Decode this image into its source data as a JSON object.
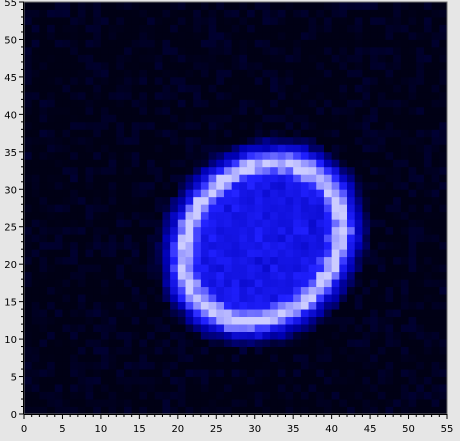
{
  "chart_data": {
    "type": "heatmap",
    "title": "",
    "xlabel": "",
    "ylabel": "",
    "xlim": [
      0,
      55
    ],
    "ylim": [
      0,
      55
    ],
    "xticks": [
      "0",
      "5",
      "10",
      "15",
      "20",
      "25",
      "30",
      "35",
      "40",
      "45",
      "50",
      "55"
    ],
    "yticks": [
      "0",
      "5",
      "10",
      "15",
      "20",
      "25",
      "30",
      "35",
      "40",
      "45",
      "50",
      "55"
    ],
    "grid": false,
    "colormap": [
      "#000015",
      "#0000b4",
      "#2020ff",
      "#ccccff"
    ],
    "grid_size": [
      55,
      55
    ],
    "pattern": {
      "shape": "ellipse_ring",
      "center": [
        31,
        23
      ],
      "outer_radius": [
        13.5,
        15.5
      ],
      "ring_radius": [
        9.5,
        11.5
      ],
      "rotation_deg": -40
    }
  }
}
